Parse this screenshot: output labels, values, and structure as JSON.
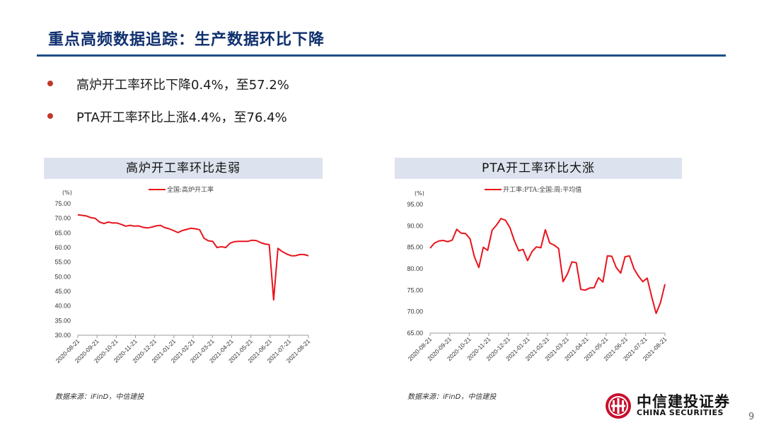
{
  "header": {
    "title": "重点高频数据追踪：生产数据环比下降"
  },
  "bullets": [
    "高炉开工率环比下降0.4%，至57.2%",
    "PTA开工率环比上涨4.4%，至76.4%"
  ],
  "footer": {
    "source_left": "数据来源：iFinD，中信建投",
    "source_right": "数据来源：iFinD，中信建投",
    "logo_cn": "中信建投证券",
    "logo_en": "CHINA SECURITIES",
    "page_number": "9"
  },
  "colors": {
    "series": "#e8141c",
    "title": "#0f2f6e",
    "rule": "#1f4e89",
    "panel": "#dde3ee"
  },
  "icons": {
    "logo": "china-securities-logo-icon",
    "bullet": "bullet-dot-icon"
  },
  "chart_data": [
    {
      "type": "line",
      "title": "高炉开工率环比走弱",
      "ylabel": "(%)",
      "ylim": [
        30,
        75
      ],
      "yticks": [
        "30.00",
        "35.00",
        "40.00",
        "45.00",
        "50.00",
        "55.00",
        "60.00",
        "65.00",
        "70.00",
        "75.00"
      ],
      "xticks": [
        "2020-08-21",
        "2020-09-21",
        "2020-10-21",
        "2020-11-21",
        "2020-12-21",
        "2021-01-21",
        "2021-02-21",
        "2021-03-21",
        "2021-04-21",
        "2021-05-21",
        "2021-06-21",
        "2021-07-21",
        "2021-08-21"
      ],
      "legend": "top",
      "series": [
        {
          "name": "全国:高炉开工率",
          "values": [
            71.2,
            71.0,
            70.8,
            70.2,
            70.0,
            68.7,
            68.2,
            68.7,
            68.4,
            68.4,
            67.9,
            67.3,
            67.6,
            67.3,
            67.4,
            66.9,
            66.7,
            67.0,
            67.4,
            67.6,
            66.8,
            66.4,
            65.8,
            65.1,
            65.8,
            66.2,
            66.6,
            66.4,
            66.1,
            63.2,
            62.3,
            62.1,
            60.0,
            60.3,
            60.0,
            61.5,
            62.0,
            62.1,
            62.1,
            62.1,
            62.5,
            62.4,
            61.7,
            61.2,
            61.0,
            42.1,
            59.7,
            58.6,
            57.8,
            57.2,
            57.2,
            57.6,
            57.6,
            57.2
          ]
        }
      ]
    },
    {
      "type": "line",
      "title": "PTA开工率环比大涨",
      "ylabel": "(%)",
      "ylim": [
        65,
        95
      ],
      "yticks": [
        "65.00",
        "70.00",
        "75.00",
        "80.00",
        "85.00",
        "90.00",
        "95.00"
      ],
      "xticks": [
        "2020-08-21",
        "2020-09-21",
        "2020-10-21",
        "2020-11-21",
        "2020-12-21",
        "2021-01-21",
        "2021-02-21",
        "2021-03-21",
        "2021-04-21",
        "2021-05-21",
        "2021-06-21",
        "2021-07-21",
        "2021-08-21"
      ],
      "legend": "top",
      "series": [
        {
          "name": "开工率:PTA:全国:周:平均值",
          "values": [
            84.8,
            86.0,
            86.5,
            86.6,
            86.3,
            86.7,
            89.2,
            88.3,
            88.2,
            87.0,
            82.8,
            80.3,
            85.0,
            84.3,
            89.0,
            90.2,
            91.7,
            91.3,
            89.6,
            86.6,
            84.2,
            84.5,
            81.9,
            84.0,
            85.1,
            84.9,
            89.1,
            86.0,
            85.5,
            84.7,
            77.0,
            78.8,
            81.6,
            81.4,
            75.2,
            75.0,
            75.5,
            75.6,
            77.9,
            76.9,
            83.0,
            82.9,
            80.3,
            79.0,
            82.8,
            83.0,
            80.0,
            78.3,
            77.0,
            77.8,
            73.5,
            69.6,
            72.1,
            76.4
          ]
        }
      ]
    }
  ]
}
